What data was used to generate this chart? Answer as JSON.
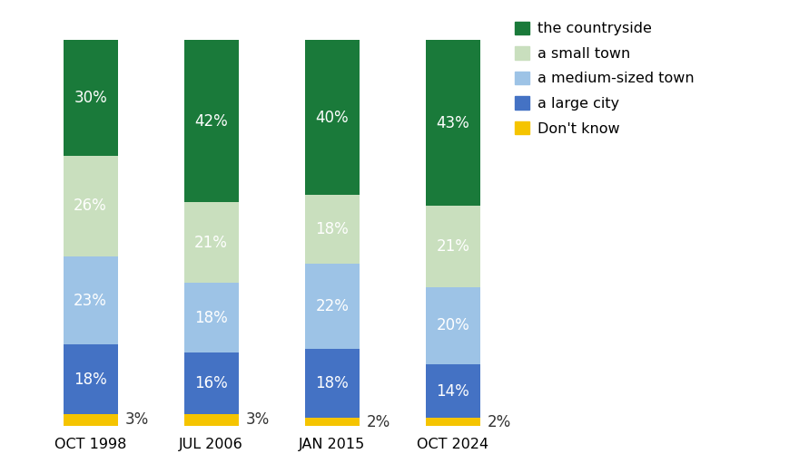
{
  "categories": [
    "OCT 1998",
    "JUL 2006",
    "JAN 2015",
    "OCT 2024"
  ],
  "segments": {
    "dont_know": [
      3,
      3,
      2,
      2
    ],
    "large_city": [
      18,
      16,
      18,
      14
    ],
    "medium_town": [
      23,
      18,
      22,
      20
    ],
    "small_town": [
      26,
      21,
      18,
      21
    ],
    "countryside": [
      30,
      42,
      40,
      43
    ]
  },
  "colors": {
    "dont_know": "#f5c400",
    "large_city": "#4472c4",
    "medium_town": "#9dc3e6",
    "small_town": "#c9dfbe",
    "countryside": "#1a7a3a"
  },
  "labels": {
    "dont_know": "Don't know",
    "large_city": "a large city",
    "medium_town": "a medium-sized town",
    "small_town": "a small town",
    "countryside": "the countryside"
  },
  "bar_width": 0.45,
  "background_color": "#ffffff",
  "text_color_white": "#ffffff",
  "text_color_dark": "#333333",
  "label_fontsize": 12,
  "tick_fontsize": 11.5,
  "legend_fontsize": 11.5,
  "ylim_max": 108
}
